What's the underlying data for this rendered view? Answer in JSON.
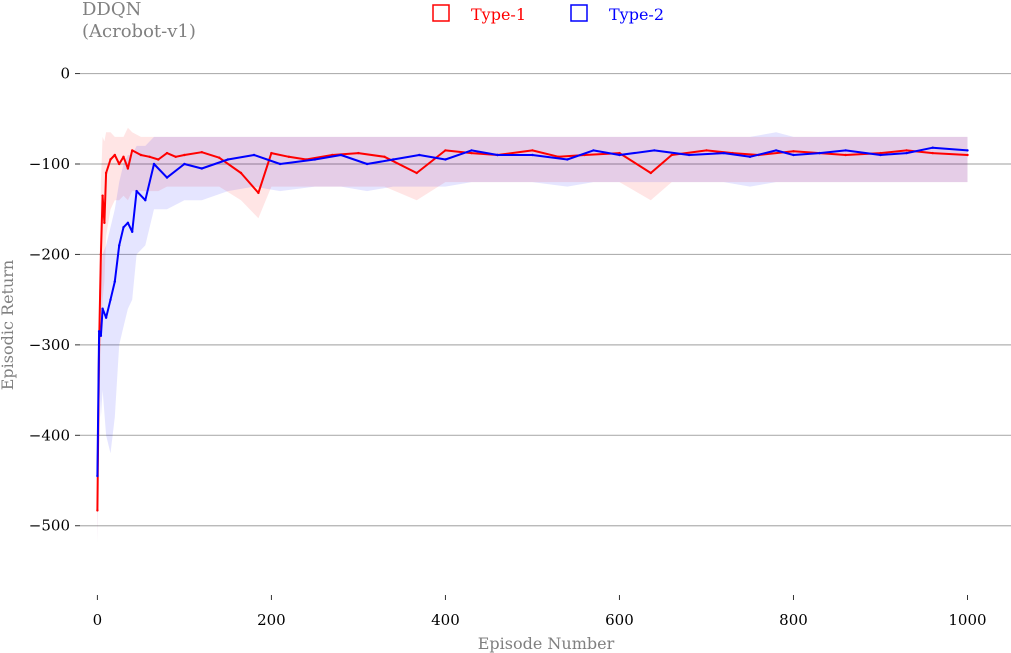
{
  "chart_data": {
    "type": "line",
    "title": "DDQN\n(Acrobot-v1)",
    "title_lines": [
      "DDQN",
      "(Acrobot-v1)"
    ],
    "xlabel": "Episode Number",
    "ylabel": "Episodic Return",
    "xlim": [
      -20,
      1050
    ],
    "ylim": [
      -560,
      15
    ],
    "xticks": [
      0,
      200,
      400,
      600,
      800,
      1000
    ],
    "yticks": [
      0,
      -100,
      -200,
      -300,
      -400,
      -500
    ],
    "xtick_labels": [
      "0",
      "200",
      "400",
      "600",
      "800",
      "1000"
    ],
    "ytick_labels": [
      "0",
      "−100",
      "−200",
      "−300",
      "−400",
      "−500"
    ],
    "grid": "horizontal",
    "legend_placement": "top-center",
    "series": [
      {
        "name": "Type-1",
        "color": "#ff0000",
        "x": [
          0,
          2,
          4,
          6,
          8,
          10,
          15,
          20,
          25,
          30,
          35,
          40,
          50,
          60,
          70,
          80,
          90,
          100,
          120,
          140,
          165,
          185,
          200,
          220,
          240,
          270,
          300,
          330,
          367,
          400,
          430,
          460,
          500,
          530,
          560,
          600,
          636,
          660,
          700,
          730,
          760,
          800,
          830,
          860,
          900,
          930,
          960,
          1000
        ],
        "values": [
          -483,
          -300,
          -200,
          -135,
          -165,
          -110,
          -95,
          -90,
          -100,
          -92,
          -105,
          -85,
          -90,
          -92,
          -95,
          -88,
          -92,
          -90,
          -87,
          -93,
          -110,
          -132,
          -88,
          -92,
          -95,
          -90,
          -88,
          -92,
          -110,
          -85,
          -88,
          -90,
          -85,
          -92,
          -90,
          -88,
          -110,
          -90,
          -85,
          -88,
          -90,
          -86,
          -88,
          -90,
          -88,
          -85,
          -88,
          -90
        ],
        "band_upper": [
          -440,
          -250,
          -120,
          -70,
          -75,
          -65,
          -65,
          -70,
          -70,
          -70,
          -60,
          -65,
          -70,
          -70,
          -70,
          -70,
          -70,
          -70,
          -70,
          -70,
          -70,
          -70,
          -70,
          -70,
          -70,
          -70,
          -70,
          -70,
          -70,
          -70,
          -70,
          -70,
          -70,
          -70,
          -70,
          -70,
          -70,
          -70,
          -70,
          -70,
          -70,
          -70,
          -70,
          -70,
          -70,
          -70,
          -70,
          -70
        ],
        "band_lower": [
          -520,
          -380,
          -300,
          -250,
          -230,
          -180,
          -150,
          -140,
          -140,
          -135,
          -140,
          -130,
          -130,
          -130,
          -130,
          -125,
          -125,
          -125,
          -125,
          -125,
          -140,
          -160,
          -125,
          -125,
          -125,
          -125,
          -125,
          -125,
          -140,
          -120,
          -120,
          -120,
          -120,
          -120,
          -120,
          -120,
          -140,
          -120,
          -120,
          -120,
          -120,
          -120,
          -120,
          -120,
          -120,
          -120,
          -120,
          -120
        ]
      },
      {
        "name": "Type-2",
        "color": "#0000ff",
        "x": [
          0,
          2,
          4,
          6,
          10,
          15,
          20,
          25,
          30,
          35,
          40,
          45,
          55,
          65,
          80,
          100,
          120,
          150,
          180,
          210,
          250,
          280,
          310,
          340,
          370,
          400,
          430,
          460,
          500,
          540,
          570,
          600,
          640,
          680,
          720,
          750,
          780,
          800,
          830,
          860,
          900,
          930,
          960,
          1000
        ],
        "values": [
          -445,
          -285,
          -290,
          -260,
          -270,
          -250,
          -230,
          -190,
          -170,
          -165,
          -175,
          -130,
          -140,
          -100,
          -115,
          -100,
          -105,
          -95,
          -90,
          -100,
          -95,
          -90,
          -100,
          -95,
          -90,
          -95,
          -85,
          -90,
          -90,
          -95,
          -85,
          -90,
          -85,
          -90,
          -88,
          -92,
          -85,
          -90,
          -88,
          -85,
          -90,
          -88,
          -82,
          -85
        ],
        "band_upper": [
          -400,
          -240,
          -230,
          -200,
          -190,
          -170,
          -150,
          -120,
          -100,
          -90,
          -90,
          -80,
          -80,
          -70,
          -70,
          -70,
          -70,
          -70,
          -70,
          -70,
          -70,
          -70,
          -70,
          -70,
          -70,
          -70,
          -70,
          -70,
          -70,
          -70,
          -70,
          -70,
          -70,
          -70,
          -70,
          -70,
          -65,
          -70,
          -70,
          -70,
          -70,
          -70,
          -70,
          -70
        ],
        "band_lower": [
          -520,
          -340,
          -380,
          -350,
          -400,
          -420,
          -380,
          -300,
          -280,
          -260,
          -250,
          -200,
          -190,
          -150,
          -150,
          -140,
          -140,
          -130,
          -125,
          -130,
          -125,
          -125,
          -130,
          -125,
          -125,
          -125,
          -120,
          -120,
          -120,
          -125,
          -120,
          -120,
          -120,
          -120,
          -120,
          -125,
          -120,
          -120,
          -120,
          -120,
          -120,
          -120,
          -120,
          -120
        ]
      }
    ]
  }
}
